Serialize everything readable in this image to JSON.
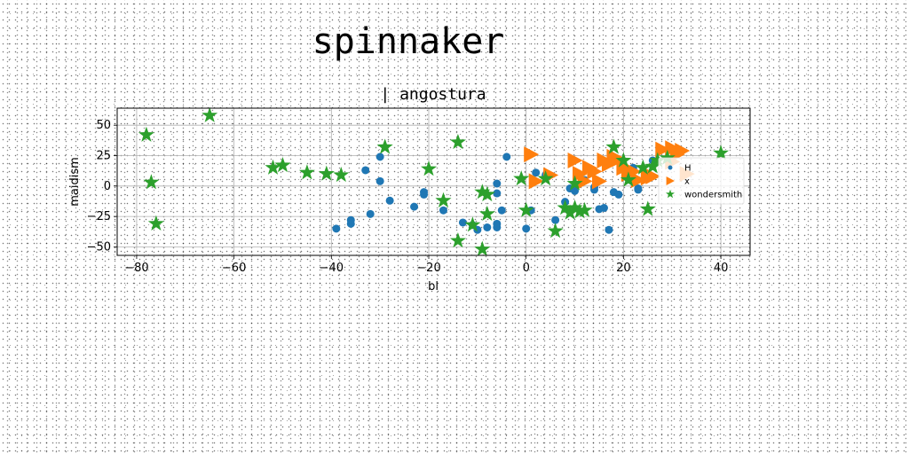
{
  "title": "spinnaker",
  "chart_data": {
    "type": "scatter",
    "title": "| angostura",
    "xlabel": "bl",
    "ylabel": "maidism",
    "xlim": [
      -84,
      46
    ],
    "ylim": [
      -57,
      64
    ],
    "xticks": [
      -80,
      -60,
      -40,
      -20,
      0,
      20,
      40
    ],
    "yticks": [
      -50,
      -25,
      0,
      25,
      50
    ],
    "grid": true,
    "legend_position": "right",
    "series": [
      {
        "name": "H",
        "marker": "circle",
        "color": "#1f77b4",
        "points": [
          [
            -39,
            -35
          ],
          [
            -36,
            -28
          ],
          [
            -36,
            -31
          ],
          [
            -33,
            13
          ],
          [
            -32,
            -23
          ],
          [
            -30,
            24
          ],
          [
            -30,
            4
          ],
          [
            -28,
            -12
          ],
          [
            -23,
            -17
          ],
          [
            -21,
            -5
          ],
          [
            -21,
            -7
          ],
          [
            -17,
            -20
          ],
          [
            -13,
            -30
          ],
          [
            -11,
            -32
          ],
          [
            -10,
            -36
          ],
          [
            -8,
            -34
          ],
          [
            -6,
            -34
          ],
          [
            -6,
            -6
          ],
          [
            -6,
            2
          ],
          [
            -6,
            -31
          ],
          [
            -5,
            -20
          ],
          [
            -4,
            24
          ],
          [
            0,
            -35
          ],
          [
            1,
            -20
          ],
          [
            2,
            11
          ],
          [
            4,
            9
          ],
          [
            6,
            -28
          ],
          [
            8,
            -13
          ],
          [
            9,
            -2
          ],
          [
            10,
            -4
          ],
          [
            12,
            5
          ],
          [
            14,
            -1
          ],
          [
            14,
            -3
          ],
          [
            15,
            -19
          ],
          [
            16,
            -18
          ],
          [
            17,
            -36
          ],
          [
            18,
            -5
          ],
          [
            19,
            -7
          ],
          [
            22,
            15
          ],
          [
            23,
            -2
          ],
          [
            23,
            -3
          ],
          [
            25,
            10
          ],
          [
            26,
            21
          ]
        ]
      },
      {
        "name": "x",
        "marker": "triangle-right",
        "color": "#ff7f0e",
        "points": [
          [
            1,
            26
          ],
          [
            2,
            4
          ],
          [
            5,
            9
          ],
          [
            10,
            21
          ],
          [
            11,
            10
          ],
          [
            12,
            4
          ],
          [
            13,
            15
          ],
          [
            14,
            12
          ],
          [
            15,
            4
          ],
          [
            16,
            21
          ],
          [
            17,
            18
          ],
          [
            18,
            24
          ],
          [
            19,
            22
          ],
          [
            20,
            15
          ],
          [
            21,
            10
          ],
          [
            22,
            12
          ],
          [
            23,
            5
          ],
          [
            25,
            7
          ],
          [
            26,
            8
          ],
          [
            28,
            30
          ],
          [
            30,
            20
          ],
          [
            30,
            31
          ],
          [
            31,
            26
          ],
          [
            32,
            29
          ],
          [
            33,
            10
          ]
        ]
      },
      {
        "name": "wondersmith",
        "marker": "star",
        "color": "#2ca02c",
        "points": [
          [
            -78,
            42
          ],
          [
            -77,
            3
          ],
          [
            -76,
            -31
          ],
          [
            -65,
            58
          ],
          [
            -52,
            15
          ],
          [
            -50,
            17
          ],
          [
            -45,
            11
          ],
          [
            -41,
            10
          ],
          [
            -38,
            9
          ],
          [
            -29,
            32
          ],
          [
            -20,
            14
          ],
          [
            -17,
            -12
          ],
          [
            -14,
            36
          ],
          [
            -14,
            -45
          ],
          [
            -11,
            -32
          ],
          [
            -9,
            -52
          ],
          [
            -9,
            -5
          ],
          [
            -8,
            -23
          ],
          [
            -8,
            -7
          ],
          [
            -1,
            6
          ],
          [
            0,
            -20
          ],
          [
            4,
            6
          ],
          [
            6,
            -37
          ],
          [
            8,
            -18
          ],
          [
            9,
            -22
          ],
          [
            10,
            2
          ],
          [
            10,
            -18
          ],
          [
            11,
            -21
          ],
          [
            12,
            -20
          ],
          [
            18,
            32
          ],
          [
            20,
            21
          ],
          [
            21,
            5
          ],
          [
            24,
            15
          ],
          [
            25,
            -19
          ],
          [
            26,
            16
          ],
          [
            27,
            21
          ],
          [
            29,
            23
          ],
          [
            40,
            27
          ]
        ]
      }
    ]
  }
}
